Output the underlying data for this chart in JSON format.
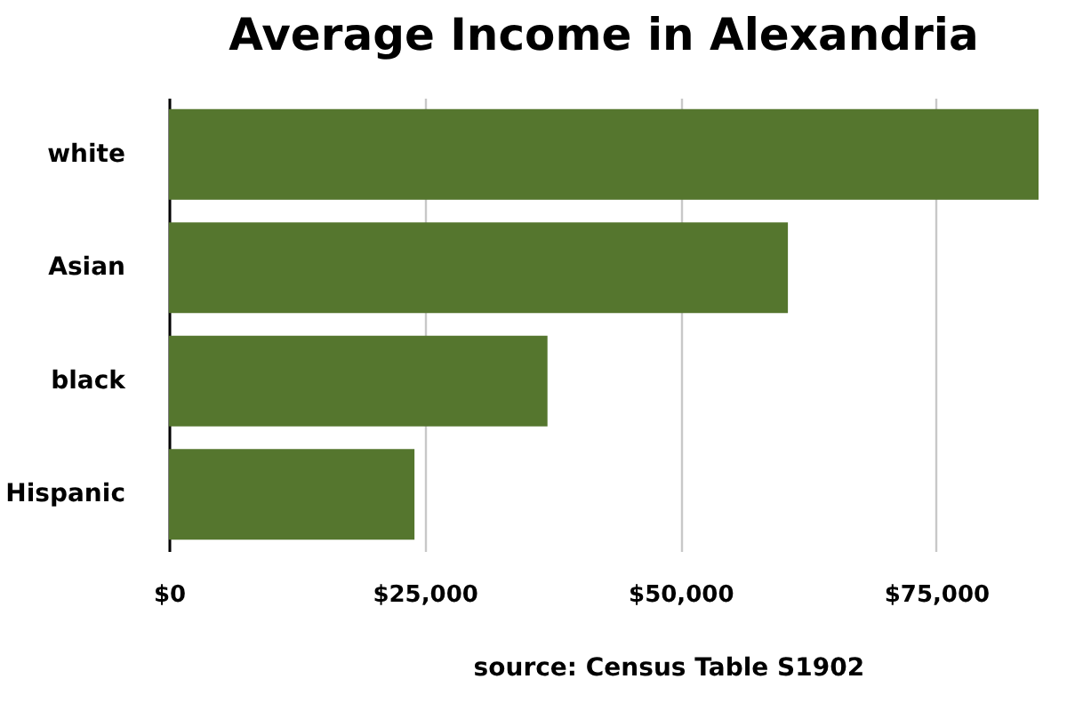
{
  "chart_data": {
    "type": "bar",
    "orientation": "horizontal",
    "title": "Average Income in Alexandria",
    "categories": [
      "white",
      "Asian",
      "black",
      "Hispanic"
    ],
    "values": [
      85000,
      60500,
      37000,
      24000
    ],
    "color": "#55762e",
    "xlim": [
      0,
      85000
    ],
    "xticks": [
      {
        "value": 0,
        "label": "$0"
      },
      {
        "value": 25000,
        "label": "$25,000"
      },
      {
        "value": 50000,
        "label": "$50,000"
      },
      {
        "value": 75000,
        "label": "$75,000"
      }
    ],
    "grid": "x",
    "annotations": [
      "source: Census Table S1902"
    ]
  }
}
